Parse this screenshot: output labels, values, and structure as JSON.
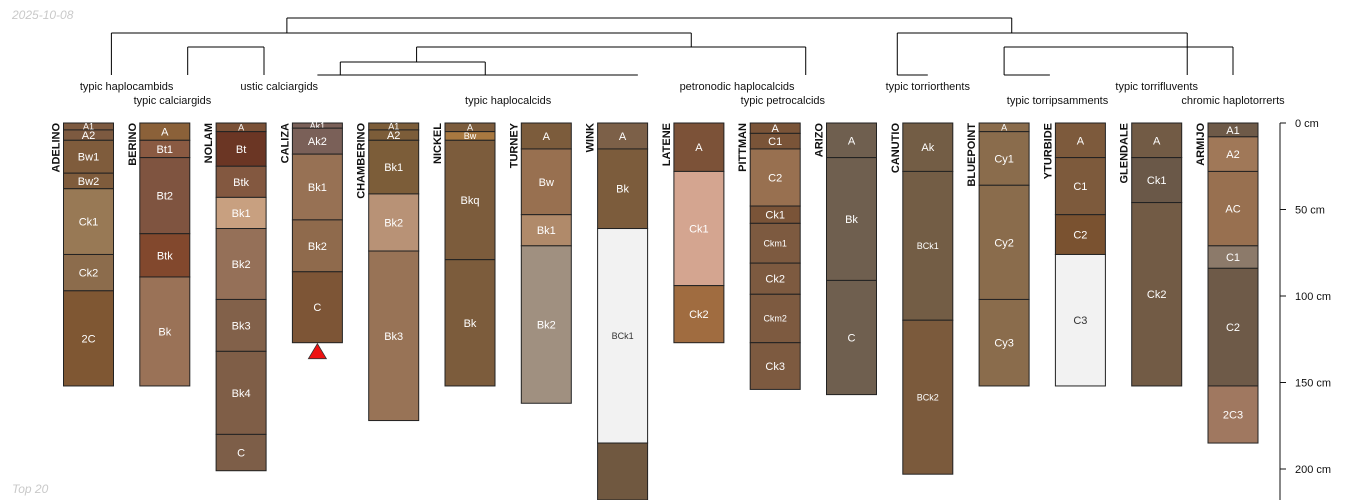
{
  "header": {
    "date": "2025-10-08"
  },
  "footer": {
    "label": "Top 20"
  },
  "colors": {
    "tree": "#000000",
    "outline": "#222222",
    "hz_text": "#ffffff",
    "marker": "#ee1111"
  },
  "depth_axis": {
    "max_cm": 220,
    "ticks": [
      0,
      50,
      100,
      150,
      200
    ],
    "unit": "cm"
  },
  "tree": {
    "leaf_order": [
      "ADELINO",
      "BERINO",
      "NOLAM",
      "CALIZA",
      "CHAMBERINO",
      "NICKEL",
      "TURNEY",
      "WINK",
      "LATENE",
      "PITTMAN",
      "ARIZO",
      "CANUTIO",
      "BLUEPOINT",
      "YTURBIDE",
      "GLENDALE",
      "ARMIJO"
    ],
    "levels": {
      "root": 1,
      "l1": 2,
      "l2": 3,
      "l3": 4,
      "l4": 5
    },
    "group_labels": [
      {
        "text": "typic haplocambids",
        "leaf": 0.5,
        "line": 0
      },
      {
        "text": "typic calciargids",
        "leaf": 1.1,
        "line": 1
      },
      {
        "text": "ustic calciargids",
        "leaf": 2.5,
        "line": 0
      },
      {
        "text": "typic haplocalcids",
        "leaf": 5.5,
        "line": 1
      },
      {
        "text": "petronodic haplocalcids",
        "leaf": 8.5,
        "line": 0
      },
      {
        "text": "typic petrocalcids",
        "leaf": 9.1,
        "line": 1
      },
      {
        "text": "typic torriorthents",
        "leaf": 11.0,
        "line": 0
      },
      {
        "text": "typic torripsamments",
        "leaf": 12.7,
        "line": 1
      },
      {
        "text": "typic torrifluvents",
        "leaf": 14.0,
        "line": 0
      },
      {
        "text": "chromic haplotorrerts",
        "leaf": 15.0,
        "line": 1
      }
    ]
  },
  "profiles": [
    {
      "name": "ADELINO",
      "horizons": [
        {
          "name": "A1",
          "top": 0,
          "bottom": 4,
          "color": "#7d5a40"
        },
        {
          "name": "A2",
          "top": 4,
          "bottom": 10,
          "color": "#7d5a40"
        },
        {
          "name": "Bw1",
          "top": 10,
          "bottom": 29,
          "color": "#7f5c3c"
        },
        {
          "name": "Bw2",
          "top": 29,
          "bottom": 38,
          "color": "#7f5c3c"
        },
        {
          "name": "Ck1",
          "top": 38,
          "bottom": 76,
          "color": "#987955"
        },
        {
          "name": "Ck2",
          "top": 76,
          "bottom": 97,
          "color": "#8c6c4c"
        },
        {
          "name": "2C",
          "top": 97,
          "bottom": 152,
          "color": "#7f5733"
        }
      ]
    },
    {
      "name": "BERINO",
      "horizons": [
        {
          "name": "A",
          "top": 0,
          "bottom": 10,
          "color": "#8b6139"
        },
        {
          "name": "Bt1",
          "top": 10,
          "bottom": 20,
          "color": "#8a5a42"
        },
        {
          "name": "Bt2",
          "top": 20,
          "bottom": 64,
          "color": "#7f5440"
        },
        {
          "name": "Btk",
          "top": 64,
          "bottom": 89,
          "color": "#82482d"
        },
        {
          "name": "Bk",
          "top": 89,
          "bottom": 152,
          "color": "#9a7257"
        }
      ]
    },
    {
      "name": "NOLAM",
      "horizons": [
        {
          "name": "A",
          "top": 0,
          "bottom": 5,
          "color": "#7b5137"
        },
        {
          "name": "Bt",
          "top": 5,
          "bottom": 25,
          "color": "#6b3624"
        },
        {
          "name": "Btk",
          "top": 25,
          "bottom": 43,
          "color": "#835840"
        },
        {
          "name": "Bk1",
          "top": 43,
          "bottom": 61,
          "color": "#c8a080"
        },
        {
          "name": "Bk2",
          "top": 61,
          "bottom": 102,
          "color": "#957058"
        },
        {
          "name": "Bk3",
          "top": 102,
          "bottom": 132,
          "color": "#82614a"
        },
        {
          "name": "Bk4",
          "top": 132,
          "bottom": 180,
          "color": "#7f5e47"
        },
        {
          "name": "C",
          "top": 180,
          "bottom": 201,
          "color": "#7d5e48"
        }
      ]
    },
    {
      "name": "CALIZA",
      "marker": true,
      "horizons": [
        {
          "name": "Ak1",
          "top": 0,
          "bottom": 3,
          "color": "#7a6058"
        },
        {
          "name": "Ak2",
          "top": 3,
          "bottom": 18,
          "color": "#7a6058"
        },
        {
          "name": "Bk1",
          "top": 18,
          "bottom": 56,
          "color": "#977154"
        },
        {
          "name": "Bk2",
          "top": 56,
          "bottom": 86,
          "color": "#8f6a4c"
        },
        {
          "name": "C",
          "top": 86,
          "bottom": 127,
          "color": "#7d5536"
        }
      ]
    },
    {
      "name": "CHAMBERINO",
      "horizons": [
        {
          "name": "A1",
          "top": 0,
          "bottom": 4,
          "color": "#7c5d39"
        },
        {
          "name": "A2",
          "top": 4,
          "bottom": 10,
          "color": "#7c5d39"
        },
        {
          "name": "Bk1",
          "top": 10,
          "bottom": 41,
          "color": "#7c5d39"
        },
        {
          "name": "Bk2",
          "top": 41,
          "bottom": 74,
          "color": "#b89276"
        },
        {
          "name": "Bk3",
          "top": 74,
          "bottom": 172,
          "color": "#987356"
        }
      ]
    },
    {
      "name": "NICKEL",
      "horizons": [
        {
          "name": "A",
          "top": 0,
          "bottom": 5,
          "color": "#7c5c3c"
        },
        {
          "name": "Bw",
          "top": 5,
          "bottom": 10,
          "color": "#a87840"
        },
        {
          "name": "Bkq",
          "top": 10,
          "bottom": 79,
          "color": "#7c5c3c"
        },
        {
          "name": "Bk",
          "top": 79,
          "bottom": 152,
          "color": "#7c5c3c"
        }
      ]
    },
    {
      "name": "TURNEY",
      "horizons": [
        {
          "name": "A",
          "top": 0,
          "bottom": 15,
          "color": "#7c5c3c"
        },
        {
          "name": "Bw",
          "top": 15,
          "bottom": 53,
          "color": "#987050"
        },
        {
          "name": "Bk1",
          "top": 53,
          "bottom": 71,
          "color": "#b08a6a"
        },
        {
          "name": "Bk2",
          "top": 71,
          "bottom": 162,
          "color": "#a09080"
        }
      ]
    },
    {
      "name": "WINK",
      "horizons": [
        {
          "name": "A",
          "top": 0,
          "bottom": 15,
          "color": "#7c6048"
        },
        {
          "name": "Bk",
          "top": 15,
          "bottom": 61,
          "color": "#7c5c3c"
        },
        {
          "name": "BCk1",
          "top": 61,
          "bottom": 185,
          "color": "#f2f2f2",
          "text": "#333333"
        },
        {
          "name": "",
          "top": 185,
          "bottom": 230,
          "color": "#705840"
        }
      ]
    },
    {
      "name": "LATENE",
      "horizons": [
        {
          "name": "A",
          "top": 0,
          "bottom": 28,
          "color": "#7c5238"
        },
        {
          "name": "Ck1",
          "top": 28,
          "bottom": 94,
          "color": "#d4a590"
        },
        {
          "name": "Ck2",
          "top": 94,
          "bottom": 127,
          "color": "#a06c40"
        }
      ]
    },
    {
      "name": "PITTMAN",
      "horizons": [
        {
          "name": "A",
          "top": 0,
          "bottom": 6,
          "color": "#7a5438"
        },
        {
          "name": "C1",
          "top": 6,
          "bottom": 15,
          "color": "#7a5438"
        },
        {
          "name": "C2",
          "top": 15,
          "bottom": 48,
          "color": "#987050"
        },
        {
          "name": "Ck1",
          "top": 48,
          "bottom": 58,
          "color": "#7a5438"
        },
        {
          "name": "Ckm1",
          "top": 58,
          "bottom": 81,
          "color": "#7d5a40"
        },
        {
          "name": "Ck2",
          "top": 81,
          "bottom": 99,
          "color": "#7d5a40"
        },
        {
          "name": "Ckm2",
          "top": 99,
          "bottom": 127,
          "color": "#7d5a40"
        },
        {
          "name": "Ck3",
          "top": 127,
          "bottom": 154,
          "color": "#7d5a40"
        }
      ]
    },
    {
      "name": "ARIZO",
      "horizons": [
        {
          "name": "A",
          "top": 0,
          "bottom": 20,
          "color": "#6f5f4f"
        },
        {
          "name": "Bk",
          "top": 20,
          "bottom": 91,
          "color": "#6f5f4f"
        },
        {
          "name": "C",
          "top": 91,
          "bottom": 157,
          "color": "#6f5f4f"
        }
      ]
    },
    {
      "name": "CANUTIO",
      "horizons": [
        {
          "name": "Ak",
          "top": 0,
          "bottom": 28,
          "color": "#735d45"
        },
        {
          "name": "BCk1",
          "top": 28,
          "bottom": 114,
          "color": "#735d45"
        },
        {
          "name": "BCk2",
          "top": 114,
          "bottom": 203,
          "color": "#7b5a3c"
        }
      ]
    },
    {
      "name": "BLUEPOINT",
      "horizons": [
        {
          "name": "A",
          "top": 0,
          "bottom": 5,
          "color": "#8a6c4c"
        },
        {
          "name": "Cy1",
          "top": 5,
          "bottom": 36,
          "color": "#8a6c4c"
        },
        {
          "name": "Cy2",
          "top": 36,
          "bottom": 102,
          "color": "#8a6c4c"
        },
        {
          "name": "Cy3",
          "top": 102,
          "bottom": 152,
          "color": "#8a6c4c"
        }
      ]
    },
    {
      "name": "YTURBIDE",
      "horizons": [
        {
          "name": "A",
          "top": 0,
          "bottom": 20,
          "color": "#7d5a3c"
        },
        {
          "name": "C1",
          "top": 20,
          "bottom": 53,
          "color": "#7d5a3c"
        },
        {
          "name": "C2",
          "top": 53,
          "bottom": 76,
          "color": "#7a5230"
        },
        {
          "name": "C3",
          "top": 76,
          "bottom": 152,
          "color": "#f2f2f2",
          "text": "#333333"
        }
      ]
    },
    {
      "name": "GLENDALE",
      "horizons": [
        {
          "name": "A",
          "top": 0,
          "bottom": 20,
          "color": "#725b45"
        },
        {
          "name": "Ck1",
          "top": 20,
          "bottom": 46,
          "color": "#6a5848"
        },
        {
          "name": "Ck2",
          "top": 46,
          "bottom": 152,
          "color": "#725b45"
        }
      ]
    },
    {
      "name": "ARMIJO",
      "horizons": [
        {
          "name": "A1",
          "top": 0,
          "bottom": 8,
          "color": "#6e5a48"
        },
        {
          "name": "A2",
          "top": 8,
          "bottom": 28,
          "color": "#a07858"
        },
        {
          "name": "AC",
          "top": 28,
          "bottom": 71,
          "color": "#987050"
        },
        {
          "name": "C1",
          "top": 71,
          "bottom": 84,
          "color": "#8c7a6a"
        },
        {
          "name": "C2",
          "top": 84,
          "bottom": 152,
          "color": "#6e5a48"
        },
        {
          "name": "2C3",
          "top": 152,
          "bottom": 185,
          "color": "#a07860"
        }
      ]
    }
  ]
}
